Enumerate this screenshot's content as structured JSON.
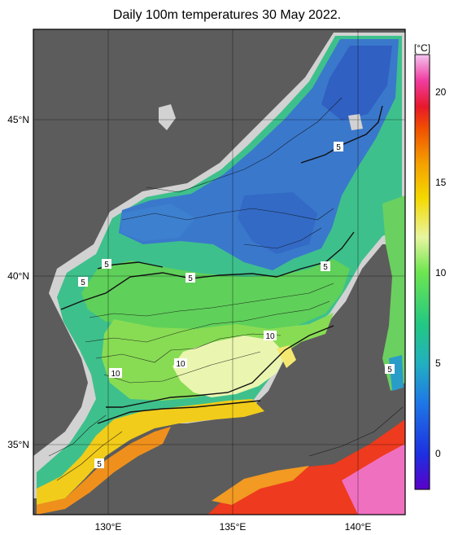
{
  "title": "Daily 100m temperatures 30 May 2022.",
  "colorbar": {
    "unit_label": "[°C]",
    "ticks": [
      "0",
      "5",
      "10",
      "15",
      "20"
    ],
    "range": [
      -2,
      22
    ]
  },
  "axes": {
    "lon_ticks": [
      "130°E",
      "135°E",
      "140°E"
    ],
    "lat_ticks": [
      "45°N",
      "40°N",
      "35°N"
    ]
  },
  "contour_labels": [
    "5",
    "5",
    "5",
    "5",
    "5",
    "5",
    "10",
    "10",
    "10",
    "5"
  ],
  "colors": {
    "land": "#5c5c5c",
    "shelf_mask": "#d4d4d4",
    "cold": "#2f5fc0",
    "mid": "#44c0a0",
    "warm": "#6ed24a",
    "hot": "#f08a1e"
  }
}
